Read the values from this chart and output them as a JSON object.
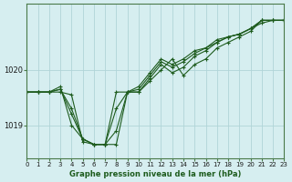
{
  "background_color": "#d6eef0",
  "grid_color": "#b0d4d8",
  "line_color": "#1e5c1e",
  "title": "Graphe pression niveau de la mer (hPa)",
  "xlim": [
    0,
    23
  ],
  "ylim": [
    1018.4,
    1021.2
  ],
  "yticks": [
    1019,
    1020
  ],
  "xticks": [
    0,
    1,
    2,
    3,
    4,
    5,
    6,
    7,
    8,
    9,
    10,
    11,
    12,
    13,
    14,
    15,
    16,
    17,
    18,
    19,
    20,
    21,
    22,
    23
  ],
  "series": [
    [
      1019.6,
      1019.6,
      1019.6,
      1019.6,
      1019.55,
      1018.7,
      1018.65,
      1018.65,
      1018.65,
      1019.6,
      1019.6,
      1019.8,
      1020.0,
      1020.2,
      1019.9,
      1020.1,
      1020.2,
      1020.4,
      1020.5,
      1020.6,
      1020.7,
      1020.9,
      1020.9,
      1020.9
    ],
    [
      1019.6,
      1019.6,
      1019.6,
      1019.65,
      1019.3,
      1018.75,
      1018.65,
      1018.65,
      1018.9,
      1019.6,
      1019.6,
      1019.85,
      1020.1,
      1019.95,
      1020.05,
      1020.25,
      1020.35,
      1020.5,
      1020.6,
      1020.65,
      1020.75,
      1020.85,
      1020.9,
      1020.9
    ],
    [
      1019.6,
      1019.6,
      1019.6,
      1019.65,
      1019.2,
      1018.75,
      1018.65,
      1018.65,
      1019.3,
      1019.6,
      1019.65,
      1019.9,
      1020.15,
      1020.05,
      1020.15,
      1020.3,
      1020.4,
      1020.5,
      1020.6,
      1020.65,
      1020.75,
      1020.9,
      1020.9,
      1020.9
    ],
    [
      1019.6,
      1019.6,
      1019.6,
      1019.7,
      1019.0,
      1018.75,
      1018.65,
      1018.65,
      1019.6,
      1019.6,
      1019.7,
      1019.95,
      1020.2,
      1020.1,
      1020.2,
      1020.35,
      1020.4,
      1020.55,
      1020.6,
      1020.65,
      1020.75,
      1020.9,
      1020.9,
      1020.9
    ]
  ]
}
